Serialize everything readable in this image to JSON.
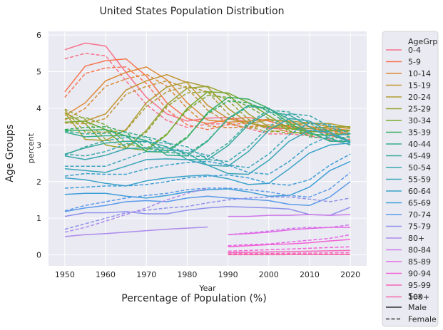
{
  "chart_data": {
    "type": "line",
    "title": "United States Population Distribution",
    "xlabel": "Year",
    "ylabel": "percent",
    "outer_xlabel": "Percentage of Population (%)",
    "outer_ylabel": "Age Groups",
    "xlim": [
      1946,
      2024
    ],
    "ylim": [
      -0.3,
      6.1
    ],
    "xticks": [
      1950,
      1960,
      1970,
      1980,
      1990,
      2000,
      2010,
      2020
    ],
    "yticks": [
      0,
      1,
      2,
      3,
      4,
      5,
      6
    ],
    "grid": true,
    "legend_placement": "outside-right",
    "legend": {
      "hue_title": "AgeGrp",
      "style_title": "Sex",
      "styles": [
        {
          "label": "Male",
          "dash": "solid"
        },
        {
          "label": "Female",
          "dash": "dashed"
        }
      ]
    },
    "x": [
      1950,
      1955,
      1960,
      1965,
      1970,
      1975,
      1980,
      1985,
      1990,
      1995,
      2000,
      2005,
      2010,
      2015,
      2020
    ],
    "series": [
      {
        "name": "0-4",
        "color": "#f77189",
        "male": [
          5.6,
          5.78,
          5.7,
          4.98,
          4.3,
          3.85,
          3.65,
          3.73,
          3.75,
          3.62,
          3.45,
          3.45,
          3.4,
          3.3,
          3.1
        ],
        "female": [
          5.35,
          5.5,
          5.43,
          4.75,
          4.1,
          3.67,
          3.48,
          3.57,
          3.58,
          3.45,
          3.3,
          3.3,
          3.25,
          3.15,
          3.0
        ]
      },
      {
        "name": "5-9",
        "color": "#f7754f",
        "male": [
          4.45,
          5.15,
          5.3,
          5.35,
          4.88,
          4.15,
          3.72,
          3.58,
          3.7,
          3.75,
          3.65,
          3.5,
          3.45,
          3.4,
          3.3
        ],
        "female": [
          4.3,
          4.95,
          5.1,
          5.13,
          4.68,
          3.97,
          3.55,
          3.42,
          3.55,
          3.6,
          3.5,
          3.35,
          3.3,
          3.25,
          3.15
        ]
      },
      {
        "name": "10-14",
        "color": "#dc8932",
        "male": [
          3.8,
          4.15,
          4.75,
          4.98,
          5.13,
          4.78,
          4.15,
          3.68,
          3.62,
          3.65,
          3.7,
          3.62,
          3.5,
          3.45,
          3.4
        ],
        "female": [
          3.68,
          4.0,
          4.6,
          4.8,
          4.93,
          4.6,
          4.0,
          3.52,
          3.47,
          3.5,
          3.55,
          3.48,
          3.38,
          3.32,
          3.27
        ]
      },
      {
        "name": "15-19",
        "color": "#c39532",
        "male": [
          3.62,
          3.65,
          3.85,
          4.5,
          4.75,
          4.92,
          4.7,
          4.08,
          3.72,
          3.58,
          3.68,
          3.65,
          3.6,
          3.5,
          3.45
        ],
        "female": [
          3.6,
          3.58,
          3.72,
          4.38,
          4.6,
          4.75,
          4.55,
          3.95,
          3.6,
          3.45,
          3.55,
          3.52,
          3.45,
          3.35,
          3.3
        ]
      },
      {
        "name": "20-24",
        "color": "#ae9d31",
        "male": [
          3.88,
          3.15,
          3.12,
          3.42,
          4.15,
          4.58,
          4.72,
          4.58,
          4.0,
          3.6,
          3.48,
          3.55,
          3.6,
          3.58,
          3.48
        ],
        "female": [
          3.95,
          3.35,
          3.35,
          3.4,
          4.05,
          4.45,
          4.6,
          4.45,
          3.85,
          3.5,
          3.35,
          3.42,
          3.45,
          3.42,
          3.35
        ]
      },
      {
        "name": "25-29",
        "color": "#97a431",
        "male": [
          3.88,
          3.58,
          3.0,
          2.9,
          3.4,
          4.1,
          4.55,
          4.6,
          4.38,
          3.85,
          3.5,
          3.45,
          3.45,
          3.5,
          3.5
        ],
        "female": [
          3.98,
          3.7,
          3.15,
          2.95,
          3.35,
          4.05,
          4.42,
          4.45,
          4.22,
          3.7,
          3.4,
          3.32,
          3.35,
          3.38,
          3.38
        ]
      },
      {
        "name": "30-34",
        "color": "#77ab31",
        "male": [
          3.62,
          3.65,
          3.42,
          2.92,
          2.85,
          3.28,
          4.0,
          4.45,
          4.42,
          4.15,
          3.8,
          3.45,
          3.35,
          3.4,
          3.4
        ],
        "female": [
          3.72,
          3.75,
          3.55,
          3.05,
          2.9,
          3.3,
          3.95,
          4.35,
          4.3,
          4.05,
          3.72,
          3.38,
          3.25,
          3.3,
          3.3
        ]
      },
      {
        "name": "35-39",
        "color": "#35ae5e",
        "male": [
          3.4,
          3.4,
          3.42,
          3.25,
          2.82,
          2.8,
          3.2,
          3.88,
          4.3,
          4.25,
          4.0,
          3.6,
          3.3,
          3.25,
          3.3
        ],
        "female": [
          3.42,
          3.48,
          3.5,
          3.35,
          2.9,
          2.85,
          3.22,
          3.85,
          4.2,
          4.15,
          3.92,
          3.55,
          3.22,
          3.18,
          3.22
        ]
      },
      {
        "name": "40-44",
        "color": "#36ad8a",
        "male": [
          3.35,
          3.22,
          3.25,
          3.25,
          3.12,
          2.72,
          2.7,
          3.1,
          3.72,
          4.08,
          4.0,
          3.7,
          3.35,
          3.1,
          3.1
        ],
        "female": [
          3.38,
          3.3,
          3.32,
          3.35,
          3.22,
          2.8,
          2.75,
          3.12,
          3.7,
          4.05,
          3.98,
          3.7,
          3.35,
          3.12,
          3.12
        ]
      },
      {
        "name": "45-49",
        "color": "#38aa9d",
        "male": [
          2.75,
          2.92,
          3.05,
          3.1,
          3.1,
          2.95,
          2.6,
          2.6,
          2.98,
          3.55,
          3.9,
          3.82,
          3.5,
          3.18,
          3.0
        ],
        "female": [
          2.72,
          2.95,
          3.12,
          3.2,
          3.22,
          3.08,
          2.7,
          2.68,
          3.05,
          3.6,
          3.95,
          3.9,
          3.6,
          3.28,
          3.08
        ]
      },
      {
        "name": "50-54",
        "color": "#39a7ac",
        "male": [
          2.7,
          2.6,
          2.72,
          2.9,
          2.92,
          2.92,
          2.78,
          2.45,
          2.42,
          2.82,
          3.4,
          3.72,
          3.65,
          3.35,
          3.05
        ],
        "female": [
          2.75,
          2.7,
          2.82,
          3.02,
          3.08,
          3.05,
          2.95,
          2.6,
          2.55,
          2.95,
          3.5,
          3.85,
          3.8,
          3.5,
          3.2
        ]
      },
      {
        "name": "55-59",
        "color": "#3aa5b9",
        "male": [
          2.35,
          2.3,
          2.25,
          2.42,
          2.6,
          2.62,
          2.6,
          2.45,
          2.22,
          2.2,
          2.58,
          3.1,
          3.4,
          3.35,
          3.1
        ],
        "female": [
          2.42,
          2.42,
          2.42,
          2.62,
          2.82,
          2.85,
          2.85,
          2.72,
          2.45,
          2.38,
          2.75,
          3.28,
          3.6,
          3.55,
          3.3
        ]
      },
      {
        "name": "60-64",
        "color": "#3ba2c8",
        "male": [
          2.1,
          2.05,
          1.95,
          1.88,
          2.02,
          2.1,
          2.15,
          2.18,
          2.08,
          1.92,
          1.95,
          2.35,
          2.78,
          3.0,
          3.05
        ],
        "female": [
          2.15,
          2.22,
          2.2,
          2.2,
          2.35,
          2.45,
          2.52,
          2.55,
          2.45,
          2.25,
          2.2,
          2.55,
          3.0,
          3.25,
          3.3
        ]
      },
      {
        "name": "65-69",
        "color": "#3e9ed8",
        "male": [
          1.65,
          1.68,
          1.68,
          1.6,
          1.55,
          1.62,
          1.72,
          1.78,
          1.8,
          1.72,
          1.6,
          1.62,
          1.85,
          2.3,
          2.55
        ],
        "female": [
          1.82,
          1.85,
          1.88,
          1.88,
          1.92,
          2.0,
          2.1,
          2.15,
          2.18,
          2.1,
          1.95,
          1.9,
          2.05,
          2.45,
          2.75
        ]
      },
      {
        "name": "70-74",
        "color": "#5b9ae9",
        "male": [
          1.18,
          1.28,
          1.35,
          1.45,
          1.48,
          1.45,
          1.55,
          1.6,
          1.55,
          1.52,
          1.48,
          1.38,
          1.35,
          1.58,
          2.0
        ],
        "female": [
          1.2,
          1.35,
          1.45,
          1.55,
          1.62,
          1.68,
          1.78,
          1.82,
          1.82,
          1.78,
          1.72,
          1.62,
          1.58,
          1.8,
          2.25
        ]
      },
      {
        "name": "75-79",
        "color": "#8e91eb",
        "male": [
          1.05,
          1.15,
          1.15,
          1.18,
          1.12,
          1.12,
          1.22,
          1.28,
          1.32,
          1.3,
          1.28,
          1.25,
          1.1,
          1.08,
          1.3
        ],
        "female": [
          0.7,
          0.85,
          1.0,
          1.15,
          1.22,
          1.28,
          1.32,
          1.42,
          1.5,
          1.55,
          1.58,
          1.58,
          1.52,
          1.45,
          1.55
        ]
      },
      {
        "name": "80+",
        "color": "#ac8aec",
        "male": [
          0.5,
          0.55,
          0.58,
          0.62,
          0.66,
          0.7,
          0.73,
          0.76,
          null,
          null,
          null,
          null,
          null,
          null,
          null
        ],
        "female": [
          0.62,
          0.75,
          0.92,
          1.1,
          1.28,
          1.5,
          1.68,
          1.82,
          null,
          null,
          null,
          null,
          null,
          null,
          null
        ]
      },
      {
        "name": "80-84",
        "color": "#cc7aeb",
        "male": [
          null,
          null,
          null,
          null,
          null,
          null,
          null,
          null,
          1.05,
          1.05,
          1.08,
          1.08,
          1.1,
          1.08,
          1.1
        ],
        "female": [
          null,
          null,
          null,
          null,
          null,
          null,
          null,
          null,
          0.55,
          0.6,
          0.65,
          0.72,
          0.75,
          0.75,
          0.82
        ]
      },
      {
        "name": "85-89",
        "color": "#e466e6",
        "male": [
          null,
          null,
          null,
          null,
          null,
          null,
          null,
          null,
          0.55,
          0.58,
          0.62,
          0.68,
          0.72,
          0.75,
          0.75
        ],
        "female": [
          null,
          null,
          null,
          null,
          null,
          null,
          null,
          null,
          0.25,
          0.28,
          0.3,
          0.35,
          0.4,
          0.45,
          0.55
        ]
      },
      {
        "name": "90-94",
        "color": "#f35fd5",
        "male": [
          null,
          null,
          null,
          null,
          null,
          null,
          null,
          null,
          0.22,
          0.25,
          0.28,
          0.3,
          0.33,
          0.38,
          0.42
        ],
        "female": [
          null,
          null,
          null,
          null,
          null,
          null,
          null,
          null,
          0.1,
          0.12,
          0.14,
          0.16,
          0.18,
          0.2,
          0.22
        ]
      },
      {
        "name": "95-99",
        "color": "#f565ba",
        "male": [
          null,
          null,
          null,
          null,
          null,
          null,
          null,
          null,
          0.06,
          0.07,
          0.08,
          0.09,
          0.1,
          0.11,
          0.12
        ],
        "female": [
          null,
          null,
          null,
          null,
          null,
          null,
          null,
          null,
          0.03,
          0.035,
          0.04,
          0.045,
          0.05,
          0.055,
          0.06
        ]
      },
      {
        "name": "100+",
        "color": "#f66bac",
        "male": [
          null,
          null,
          null,
          null,
          null,
          null,
          null,
          null,
          0.01,
          0.01,
          0.012,
          0.013,
          0.014,
          0.015,
          0.016
        ],
        "female": [
          null,
          null,
          null,
          null,
          null,
          null,
          null,
          null,
          0.003,
          0.004,
          0.004,
          0.005,
          0.006,
          0.006,
          0.007
        ]
      }
    ]
  }
}
